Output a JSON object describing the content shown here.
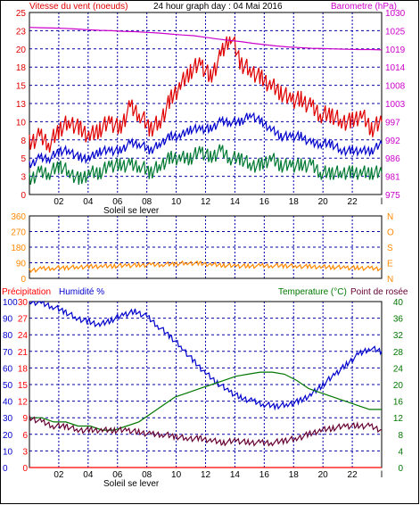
{
  "header": {
    "left_title": "Vitesse du vent (noeuds)",
    "center_title": "24 hour graph day : 04 Mai 2016",
    "right_title": "Barometre (hPa)"
  },
  "mid": {
    "dir_labels": [
      "N",
      "O",
      "S",
      "E",
      "N"
    ]
  },
  "bottom_header": {
    "precip": "Précipitation",
    "humidity": "Humidité %",
    "temperature": "Temperature (°C)",
    "dewpoint": "Point de rosée"
  },
  "x_axis": {
    "ticks": [
      "02",
      "04",
      "06",
      "08",
      "10",
      "12",
      "14",
      "16",
      "18",
      "20",
      "22"
    ],
    "sun_label": "Soleil se lever"
  },
  "colors": {
    "wind_gust": "#e00000",
    "wind_avg": "#0000cc",
    "wind_low": "#007a33",
    "barometer": "#cc00cc",
    "direction": "#ff8800",
    "humidity": "#0000cc",
    "temperature": "#007700",
    "dewpoint": "#660033",
    "precip": "#ff0000",
    "grid": "#0000aa"
  },
  "chart_data": [
    {
      "type": "line",
      "name": "wind",
      "y_left_ticks": [
        0,
        3,
        5,
        8,
        10,
        13,
        15,
        18,
        20,
        23,
        25
      ],
      "y_right_ticks": [
        975,
        981,
        986,
        992,
        997,
        1003,
        1008,
        1014,
        1019,
        1025,
        1030
      ],
      "ylim": [
        0,
        25
      ],
      "series": [
        {
          "name": "Vitesse du vent (noeuds)",
          "values": [
            7,
            8,
            7,
            9,
            10,
            9,
            8,
            9,
            10,
            9,
            12,
            11,
            9,
            10,
            13,
            15,
            17,
            18,
            16,
            19,
            22,
            18,
            17,
            16,
            15,
            14,
            13,
            13,
            12,
            11,
            11,
            10,
            10,
            11,
            9,
            10
          ]
        },
        {
          "name": "moyenne",
          "values": [
            4,
            5,
            5,
            6,
            6,
            5,
            5,
            6,
            6,
            6,
            7,
            7,
            6,
            7,
            8,
            8,
            9,
            9,
            9,
            10,
            10,
            10,
            11,
            10,
            9,
            8,
            8,
            8,
            7,
            7,
            7,
            6,
            6,
            6,
            6,
            7
          ]
        },
        {
          "name": "min",
          "values": [
            2,
            3,
            3,
            4,
            3,
            2,
            3,
            3,
            4,
            4,
            4,
            4,
            3,
            4,
            5,
            5,
            5,
            6,
            5,
            6,
            5,
            5,
            4,
            4,
            5,
            4,
            4,
            4,
            4,
            3,
            3,
            3,
            3,
            3,
            3,
            3
          ]
        },
        {
          "name": "Barometre (hPa)",
          "axis": "right",
          "values": [
            1025.5,
            1025.4,
            1025.3,
            1025.2,
            1025,
            1024.8,
            1024.6,
            1024.5,
            1024.3,
            1024.2,
            1024,
            1023.8,
            1023.5,
            1023.2,
            1023,
            1022.5,
            1022,
            1021.6,
            1021.2,
            1020.7,
            1020.3,
            1019.9,
            1019.6,
            1019.4,
            1019.2,
            1019.1,
            1019,
            1018.9,
            1018.8,
            1018.8,
            1018.7
          ]
        }
      ]
    },
    {
      "type": "line",
      "name": "wind_direction",
      "y_left_ticks": [
        0,
        90,
        180,
        270,
        360
      ],
      "ylim": [
        0,
        360
      ],
      "series": [
        {
          "name": "direction",
          "values": [
            45,
            55,
            60,
            62,
            65,
            68,
            70,
            72,
            74,
            76,
            78,
            80,
            84,
            88,
            86,
            80,
            76,
            72,
            70,
            72,
            74,
            73,
            70,
            68,
            66,
            65,
            62,
            60,
            58,
            56
          ]
        }
      ]
    },
    {
      "type": "line",
      "name": "temp_humidity",
      "y_left_ticks": [
        0,
        10,
        20,
        30,
        40,
        50,
        60,
        70,
        80,
        90,
        100
      ],
      "y_precip_ticks": [
        0,
        3,
        6,
        9,
        12,
        15,
        18,
        21,
        24,
        27,
        30
      ],
      "y_right_ticks": [
        0,
        4,
        8,
        12,
        16,
        20,
        24,
        28,
        32,
        36,
        40
      ],
      "ylim": [
        0,
        100
      ],
      "series": [
        {
          "name": "Humidité %",
          "values": [
            100,
            99,
            97,
            94,
            90,
            88,
            86,
            89,
            92,
            94,
            91,
            85,
            79,
            72,
            64,
            57,
            51,
            46,
            42,
            40,
            38,
            37,
            38,
            40,
            44,
            50,
            56,
            62,
            68,
            72,
            70
          ]
        },
        {
          "name": "Temperature (°C)",
          "axis": "right",
          "values": [
            12,
            12,
            11,
            11,
            10,
            10,
            9,
            9,
            10,
            11,
            13,
            15,
            17,
            18,
            19,
            20,
            21,
            22,
            22.5,
            23,
            23,
            22.5,
            21,
            19,
            18,
            17,
            16,
            15,
            14,
            14
          ]
        },
        {
          "name": "Point de rosée",
          "axis": "right",
          "values": [
            12,
            11,
            10,
            10,
            9,
            9,
            9,
            9,
            9,
            8.5,
            8,
            8,
            7.5,
            7,
            7,
            6.5,
            6,
            6.5,
            6,
            6,
            6,
            6.5,
            7,
            8,
            9,
            9.5,
            10,
            10,
            10,
            9
          ]
        },
        {
          "name": "Précipitation",
          "values": [
            0,
            0,
            0,
            0,
            0,
            0,
            0,
            0,
            0,
            0,
            0,
            0,
            0,
            0,
            0,
            0,
            0,
            0,
            0,
            0,
            0,
            0,
            0,
            0,
            0,
            0,
            0,
            0,
            0,
            0
          ]
        }
      ]
    }
  ]
}
